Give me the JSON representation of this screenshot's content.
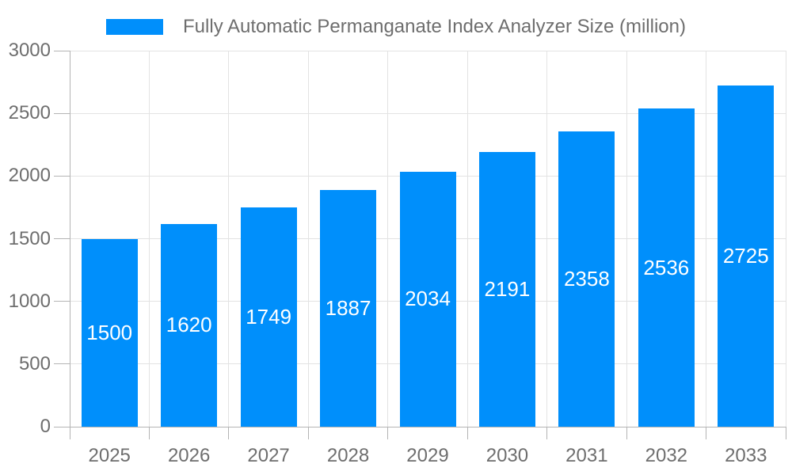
{
  "legend": {
    "label": "Fully Automatic Permanganate Index Analyzer Size (million)"
  },
  "colors": {
    "bar": "#008FFB",
    "value_label": "#FFFFFF",
    "grid": "#E3E3E3",
    "axis": "#B4B4B4",
    "tick_label": "#6E6E6E",
    "legend_text": "#6E6E6E",
    "background": "#FFFFFF"
  },
  "chart_data": {
    "type": "bar",
    "title": "Fully Automatic Permanganate Index Analyzer Size (million)",
    "categories": [
      "2025",
      "2026",
      "2027",
      "2028",
      "2029",
      "2030",
      "2031",
      "2032",
      "2033"
    ],
    "values": [
      1500,
      1620,
      1749,
      1887,
      2034,
      2191,
      2358,
      2536,
      2725
    ],
    "series": [
      {
        "name": "Fully Automatic Permanganate Index Analyzer Size (million)",
        "values": [
          1500,
          1620,
          1749,
          1887,
          2034,
          2191,
          2358,
          2536,
          2725
        ]
      }
    ],
    "xlabel": "",
    "ylabel": "",
    "ylim": [
      0,
      3000
    ],
    "yticks": [
      0,
      500,
      1000,
      1500,
      2000,
      2500,
      3000
    ],
    "grid": true,
    "legend_position": "top",
    "value_label_position": "inside-center"
  }
}
